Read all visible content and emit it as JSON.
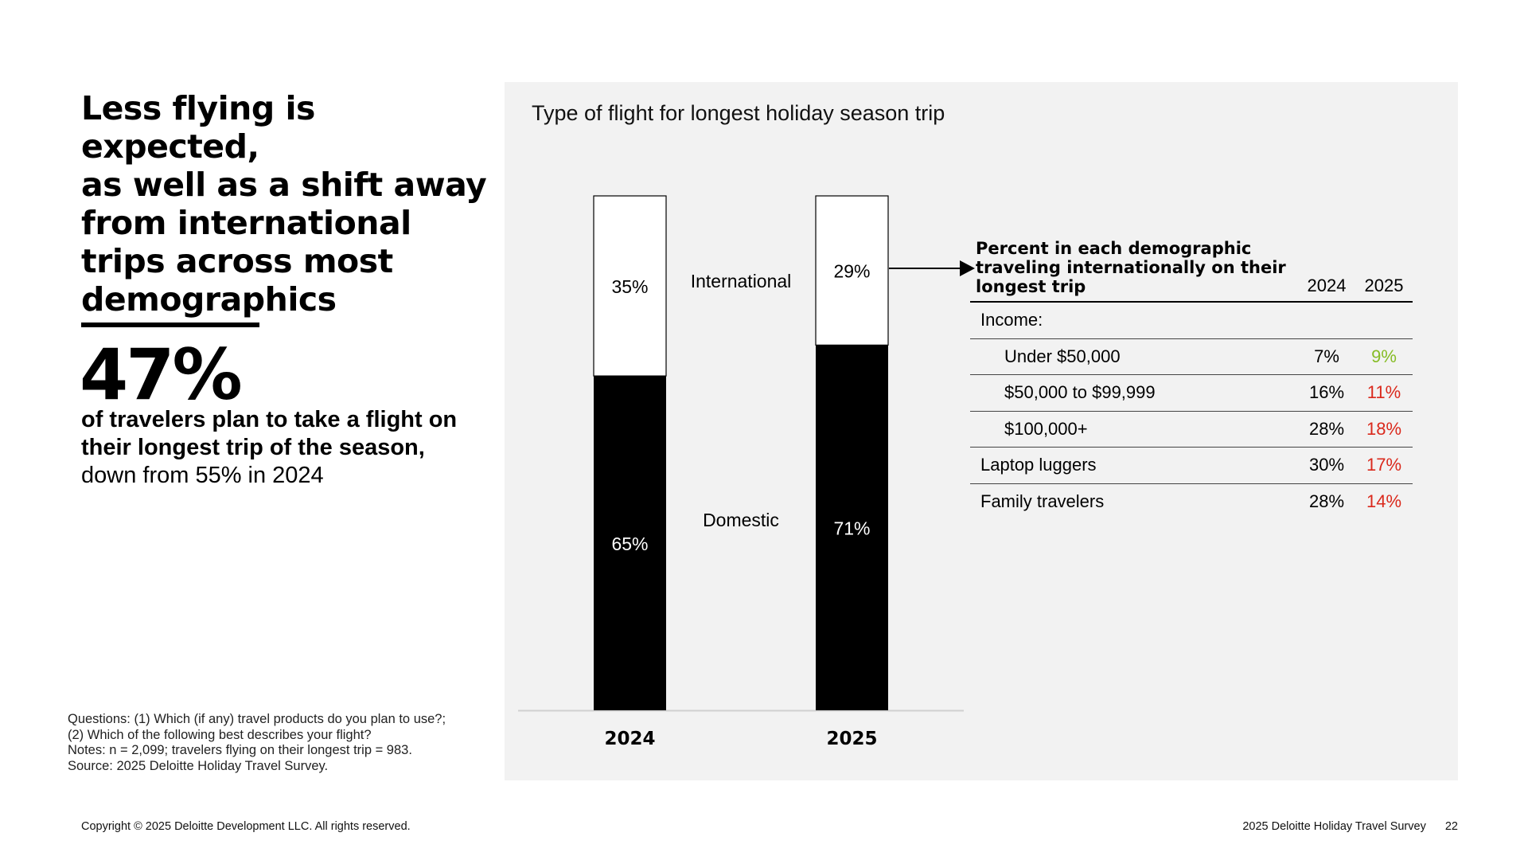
{
  "headline": [
    "Less flying is expected,",
    "as well as a shift away",
    "from international",
    "trips across most",
    "demographics"
  ],
  "stat": {
    "value": "47%",
    "desc_bold_1": "of travelers plan to take a flight on",
    "desc_bold_2": "their longest trip of the season,",
    "desc_regular": "down from 55% in 2024"
  },
  "notes": [
    "Questions: (1) Which (if any) travel products do you plan to use?;",
    "(2) Which of the following best describes your flight?",
    "Notes: n = 2,099; travelers flying on their longest trip = 983.",
    "Source: 2025 Deloitte Holiday Travel Survey."
  ],
  "chart_data": {
    "type": "bar",
    "stacked": true,
    "title": "Type of flight for longest holiday season trip",
    "categories": [
      "2024",
      "2025"
    ],
    "series": [
      {
        "name": "Domestic",
        "values": [
          65,
          71
        ],
        "value_labels": [
          "65%",
          "71%"
        ],
        "color": "#000000"
      },
      {
        "name": "International",
        "values": [
          35,
          29
        ],
        "value_labels": [
          "35%",
          "29%"
        ],
        "color": "#ffffff"
      }
    ],
    "ylim": [
      0,
      100
    ],
    "legend": "inline-between-bars",
    "grid": false
  },
  "table": {
    "title_lines": [
      "Percent in each demographic",
      "traveling internationally on their",
      "longest trip"
    ],
    "columns": [
      "2024",
      "2025"
    ],
    "rows": [
      {
        "label": "Income:",
        "v2024": "",
        "v2025": "",
        "indent": false
      },
      {
        "label": "Under $50,000",
        "v2024": "7%",
        "v2025": "9%",
        "indent": true
      },
      {
        "label": "$50,000 to $99,999",
        "v2024": "16%",
        "v2025": "11%",
        "indent": true
      },
      {
        "label": "$100,000+",
        "v2024": "28%",
        "v2025": "18%",
        "indent": true
      },
      {
        "label": "Laptop luggers",
        "v2024": "30%",
        "v2025": "17%",
        "indent": false
      },
      {
        "label": "Family travelers",
        "v2024": "28%",
        "v2025": "14%",
        "indent": false
      }
    ],
    "colors": {
      "increase": "#86bc25",
      "decrease": "#da291c"
    },
    "row_colors_2025": [
      "",
      "#86bc25",
      "#da291c",
      "#da291c",
      "#da291c",
      "#da291c"
    ]
  },
  "footer": {
    "copyright": "Copyright © 2025 Deloitte Development LLC. All rights reserved.",
    "survey": "2025 Deloitte Holiday Travel Survey",
    "page": "22"
  }
}
